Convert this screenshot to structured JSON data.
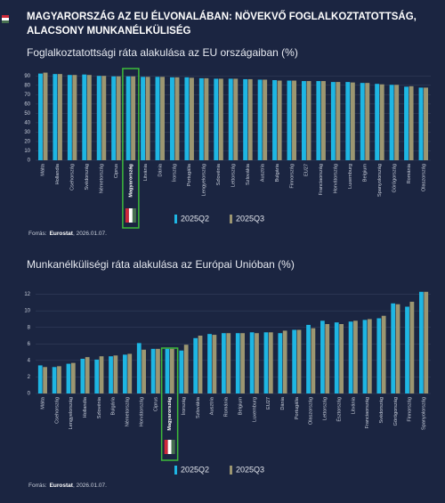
{
  "header": {
    "title_line1": "MAGYARORSZÁG AZ EU ÉLVONALÁBAN: NÖVEKVŐ FOGLALKOZTATOTTSÁG,",
    "title_line2": "ALACSONY MUNKANÉLKÜLISÉG"
  },
  "chart_data": [
    {
      "type": "bar",
      "title": "Foglalkoztatottsági ráta alakulása az EU országaiban (%)",
      "categories": [
        "Málta",
        "Hollandia",
        "Csehország",
        "Svédország",
        "Németország",
        "Ciprus",
        "Magyarország",
        "Litvánia",
        "Dánia",
        "Írország",
        "Portugália",
        "Lengyelország",
        "Szlovénia",
        "Lettország",
        "Szlovákia",
        "Ausztria",
        "Bulgária",
        "Finnország",
        "EU27",
        "Franciaország",
        "Horvátország",
        "Luxemburg",
        "Belgium",
        "Spanyolország",
        "Görögország",
        "Románia",
        "Olaszország"
      ],
      "series": [
        {
          "name": "2025Q2",
          "color": "#1eb6e3",
          "values": [
            92.5,
            92,
            91,
            91.5,
            90,
            89.5,
            89.5,
            89,
            89,
            88.5,
            88.5,
            87.5,
            87,
            87,
            86.5,
            86,
            85.5,
            85,
            84.5,
            84.5,
            83.5,
            83.5,
            82.5,
            81.5,
            80.5,
            78.5,
            77.5
          ]
        },
        {
          "name": "2025Q3",
          "color": "#9c9671",
          "values": [
            93.5,
            92,
            91,
            91,
            90,
            89.5,
            89.5,
            89,
            89,
            88.5,
            88,
            87.5,
            87,
            87,
            86.5,
            86,
            85,
            85,
            84.5,
            84.5,
            83.5,
            83,
            82.5,
            81,
            80.5,
            79,
            77.5
          ]
        }
      ],
      "ylim": [
        0,
        95
      ],
      "yticks": [
        0,
        10,
        20,
        30,
        40,
        50,
        60,
        70,
        80,
        90
      ],
      "grid": true,
      "highlight": 6,
      "source_label": "Forrás:",
      "source_name": "Eurostat",
      "source_date": ", 2026.01.07."
    },
    {
      "type": "bar",
      "title": "Munkanélküliségi ráta alakulása az Európai Unióban (%)",
      "categories": [
        "Málta",
        "Csehország",
        "Lengyelország",
        "Hollandia",
        "Szlovénia",
        "Bulgária",
        "Németország",
        "Horvátország",
        "Ciprus",
        "Magyarország",
        "Írország",
        "Szlovákia",
        "Ausztria",
        "Románia",
        "Belgium",
        "Luxemburg",
        "EU27",
        "Dánia",
        "Portugália",
        "Olaszország",
        "Lettország",
        "Észtország",
        "Litvánia",
        "Franciaország",
        "Svédország",
        "Görögország",
        "Finnország",
        "Spanyolország"
      ],
      "series": [
        {
          "name": "2025Q2",
          "color": "#1eb6e3",
          "values": [
            3.4,
            3.2,
            3.6,
            4.2,
            4.1,
            4.5,
            4.7,
            6.1,
            5.4,
            5.4,
            5.2,
            6.7,
            7.2,
            7.3,
            7.3,
            7.4,
            7.4,
            7.3,
            7.7,
            8.3,
            8.8,
            8.6,
            8.7,
            8.9,
            9.1,
            10.9,
            10.5,
            12.3
          ]
        },
        {
          "name": "2025Q3",
          "color": "#9c9671",
          "values": [
            3.2,
            3.3,
            3.7,
            4.4,
            4.5,
            4.6,
            4.8,
            5.3,
            5.4,
            5.4,
            5.9,
            7.0,
            7.1,
            7.3,
            7.3,
            7.3,
            7.4,
            7.6,
            7.7,
            7.9,
            8.4,
            8.4,
            8.8,
            9.0,
            9.4,
            10.8,
            11.1,
            12.3
          ]
        }
      ],
      "ylim": [
        0,
        12.6
      ],
      "yticks": [
        0,
        2,
        4,
        6,
        8,
        10,
        12
      ],
      "grid": true,
      "highlight": 9,
      "source_label": "Forrás:",
      "source_name": "Eurostat",
      "source_date": ", 2026.01.07."
    }
  ]
}
